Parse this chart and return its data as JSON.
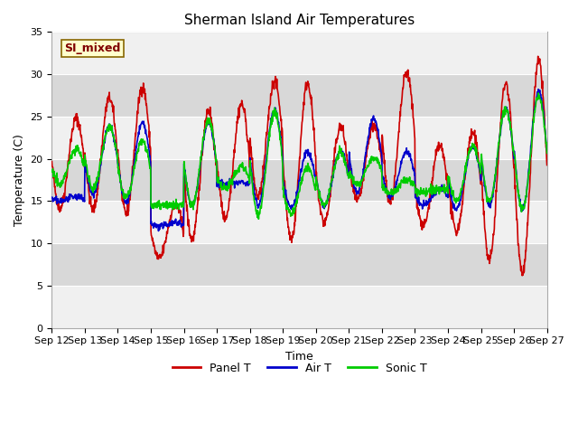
{
  "title": "Sherman Island Air Temperatures",
  "xlabel": "Time",
  "ylabel": "Temperature (C)",
  "ylim": [
    0,
    35
  ],
  "yticks": [
    0,
    5,
    10,
    15,
    20,
    25,
    30,
    35
  ],
  "x_tick_labels": [
    "Sep 12",
    "Sep 13",
    "Sep 14",
    "Sep 15",
    "Sep 16",
    "Sep 17",
    "Sep 18",
    "Sep 19",
    "Sep 20",
    "Sep 21",
    "Sep 22",
    "Sep 23",
    "Sep 24",
    "Sep 25",
    "Sep 26",
    "Sep 27"
  ],
  "panel_color": "#cc0000",
  "air_color": "#0000cc",
  "sonic_color": "#00cc00",
  "fig_bg_color": "#ffffff",
  "plot_bg_light": "#f0f0f0",
  "plot_bg_dark": "#d8d8d8",
  "label_box_text": "SI_mixed",
  "label_box_facecolor": "#ffffcc",
  "label_box_edgecolor": "#886600",
  "label_box_textcolor": "#800000",
  "grid_color": "#ffffff",
  "title_fontsize": 11,
  "axis_fontsize": 9,
  "tick_fontsize": 8,
  "legend_fontsize": 9,
  "line_width": 1.2,
  "daily_peaks_panel": [
    24.8,
    27.2,
    28.5,
    14.5,
    25.8,
    26.5,
    29.2,
    29.0,
    23.8,
    24.0,
    30.2,
    21.5,
    23.0,
    29.0,
    31.5
  ],
  "daily_troughs_panel": [
    14.2,
    14.0,
    13.5,
    8.2,
    10.5,
    13.0,
    15.5,
    10.5,
    12.5,
    15.0,
    15.0,
    12.0,
    11.5,
    8.0,
    6.5
  ],
  "daily_peaks_air": [
    15.5,
    23.8,
    24.2,
    12.5,
    24.2,
    17.2,
    25.8,
    20.8,
    21.0,
    24.8,
    20.8,
    16.5,
    21.5,
    26.0,
    28.0
  ],
  "daily_troughs_air": [
    15.0,
    15.8,
    14.8,
    12.0,
    14.5,
    17.0,
    14.5,
    14.2,
    14.5,
    16.0,
    15.5,
    14.5,
    14.0,
    14.5,
    14.0
  ],
  "daily_peaks_sonic": [
    21.2,
    23.8,
    22.2,
    14.5,
    24.5,
    19.0,
    25.5,
    19.0,
    20.8,
    20.2,
    17.5,
    16.5,
    21.5,
    26.0,
    27.5
  ],
  "daily_troughs_sonic": [
    17.0,
    16.5,
    15.5,
    14.5,
    14.5,
    16.5,
    13.5,
    13.5,
    14.5,
    17.0,
    16.0,
    16.0,
    15.0,
    15.0,
    14.0
  ]
}
